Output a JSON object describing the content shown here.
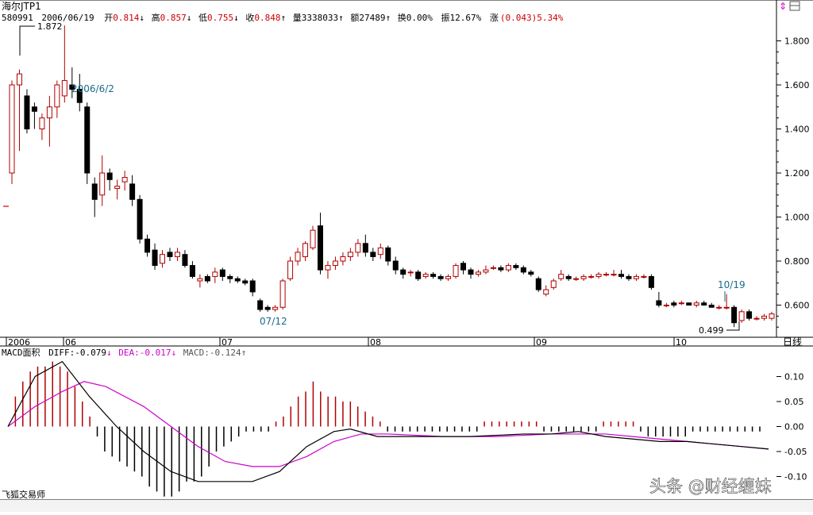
{
  "chart_data": [
    {
      "type": "candlestick",
      "title": "海尔JTP1",
      "info_bar": {
        "code": "580991",
        "date": "2006/06/19",
        "open_label": "开",
        "open": "0.814",
        "open_arrow": "↓",
        "high_label": "高",
        "high": "0.857",
        "high_arrow": "↓",
        "low_label": "低",
        "low": "0.755",
        "low_arrow": "↓",
        "close_label": "收",
        "close": "0.848",
        "close_arrow": "↑",
        "volume_label": "量",
        "volume": "3338033",
        "volume_arrow": "↑",
        "amount_label": "额",
        "amount": "27489",
        "amount_arrow": "↑",
        "turnover_label": "换",
        "turnover": "0.00%",
        "amplitude_label": "振",
        "amplitude": "12.67%",
        "change_label": "涨",
        "change": "(0.043)",
        "change_pct": "5.34%"
      },
      "annotations": [
        "1.872",
        "2006/6/2",
        "07/12",
        "10/19",
        "0.499"
      ],
      "x_tick_labels": [
        "2006",
        "06",
        "07",
        "08",
        "09",
        "10"
      ],
      "y_tick_labels": [
        "1.800",
        "1.600",
        "1.400",
        "1.200",
        "1.000",
        "0.800",
        "0.600"
      ],
      "ylim": [
        0.48,
        1.9
      ],
      "period_label": "日线",
      "candles": [
        [
          1.2,
          1.6,
          1.15,
          1.62
        ],
        [
          1.6,
          1.65,
          1.3,
          1.67
        ],
        [
          1.55,
          1.4,
          1.38,
          1.58
        ],
        [
          1.5,
          1.48,
          1.4,
          1.52
        ],
        [
          1.4,
          1.45,
          1.35,
          1.47
        ],
        [
          1.45,
          1.5,
          1.32,
          1.55
        ],
        [
          1.5,
          1.6,
          1.45,
          1.62
        ],
        [
          1.55,
          1.62,
          1.52,
          1.87
        ],
        [
          1.6,
          1.58,
          1.54,
          1.68
        ],
        [
          1.58,
          1.52,
          1.48,
          1.65
        ],
        [
          1.5,
          1.2,
          1.15,
          1.52
        ],
        [
          1.15,
          1.08,
          1.0,
          1.18
        ],
        [
          1.1,
          1.2,
          1.05,
          1.28
        ],
        [
          1.2,
          1.17,
          1.12,
          1.22
        ],
        [
          1.13,
          1.14,
          1.08,
          1.17
        ],
        [
          1.16,
          1.18,
          1.12,
          1.21
        ],
        [
          1.15,
          1.08,
          1.05,
          1.19
        ],
        [
          1.08,
          0.9,
          0.88,
          1.1
        ],
        [
          0.9,
          0.84,
          0.82,
          0.92
        ],
        [
          0.85,
          0.78,
          0.76,
          0.88
        ],
        [
          0.79,
          0.83,
          0.77,
          0.85
        ],
        [
          0.84,
          0.82,
          0.8,
          0.86
        ],
        [
          0.82,
          0.84,
          0.8,
          0.86
        ],
        [
          0.83,
          0.78,
          0.77,
          0.85
        ],
        [
          0.78,
          0.73,
          0.72,
          0.8
        ],
        [
          0.71,
          0.72,
          0.68,
          0.74
        ],
        [
          0.73,
          0.71,
          0.7,
          0.74
        ],
        [
          0.73,
          0.75,
          0.7,
          0.77
        ],
        [
          0.76,
          0.73,
          0.71,
          0.77
        ],
        [
          0.73,
          0.72,
          0.7,
          0.74
        ],
        [
          0.72,
          0.71,
          0.7,
          0.73
        ],
        [
          0.71,
          0.7,
          0.69,
          0.72
        ],
        [
          0.71,
          0.66,
          0.64,
          0.72
        ],
        [
          0.62,
          0.58,
          0.57,
          0.63
        ],
        [
          0.59,
          0.58,
          0.57,
          0.6
        ],
        [
          0.58,
          0.59,
          0.57,
          0.6
        ],
        [
          0.59,
          0.71,
          0.58,
          0.72
        ],
        [
          0.72,
          0.8,
          0.71,
          0.82
        ],
        [
          0.8,
          0.84,
          0.78,
          0.86
        ],
        [
          0.82,
          0.88,
          0.8,
          0.89
        ],
        [
          0.86,
          0.94,
          0.85,
          0.96
        ],
        [
          0.96,
          0.76,
          0.74,
          1.02
        ],
        [
          0.76,
          0.78,
          0.72,
          0.8
        ],
        [
          0.78,
          0.8,
          0.76,
          0.82
        ],
        [
          0.8,
          0.82,
          0.78,
          0.84
        ],
        [
          0.82,
          0.84,
          0.8,
          0.86
        ],
        [
          0.84,
          0.88,
          0.82,
          0.9
        ],
        [
          0.88,
          0.84,
          0.82,
          0.92
        ],
        [
          0.84,
          0.82,
          0.8,
          0.86
        ],
        [
          0.83,
          0.86,
          0.81,
          0.88
        ],
        [
          0.86,
          0.8,
          0.78,
          0.87
        ],
        [
          0.8,
          0.76,
          0.74,
          0.82
        ],
        [
          0.76,
          0.74,
          0.72,
          0.77
        ],
        [
          0.75,
          0.75,
          0.73,
          0.76
        ],
        [
          0.75,
          0.72,
          0.71,
          0.76
        ],
        [
          0.73,
          0.74,
          0.72,
          0.75
        ],
        [
          0.74,
          0.73,
          0.72,
          0.75
        ],
        [
          0.73,
          0.72,
          0.71,
          0.74
        ],
        [
          0.72,
          0.73,
          0.71,
          0.74
        ],
        [
          0.73,
          0.78,
          0.72,
          0.79
        ],
        [
          0.79,
          0.76,
          0.74,
          0.8
        ],
        [
          0.76,
          0.74,
          0.72,
          0.77
        ],
        [
          0.74,
          0.75,
          0.73,
          0.76
        ],
        [
          0.75,
          0.76,
          0.74,
          0.78
        ],
        [
          0.77,
          0.77,
          0.76,
          0.78
        ],
        [
          0.77,
          0.76,
          0.75,
          0.78
        ],
        [
          0.76,
          0.78,
          0.75,
          0.79
        ],
        [
          0.78,
          0.77,
          0.76,
          0.79
        ],
        [
          0.77,
          0.75,
          0.74,
          0.78
        ],
        [
          0.75,
          0.74,
          0.73,
          0.76
        ],
        [
          0.72,
          0.67,
          0.66,
          0.73
        ],
        [
          0.65,
          0.67,
          0.64,
          0.69
        ],
        [
          0.68,
          0.71,
          0.67,
          0.72
        ],
        [
          0.72,
          0.74,
          0.71,
          0.76
        ],
        [
          0.73,
          0.72,
          0.71,
          0.74
        ],
        [
          0.72,
          0.72,
          0.71,
          0.73
        ],
        [
          0.72,
          0.73,
          0.71,
          0.74
        ],
        [
          0.73,
          0.73,
          0.72,
          0.74
        ],
        [
          0.73,
          0.74,
          0.72,
          0.75
        ],
        [
          0.74,
          0.74,
          0.73,
          0.75
        ],
        [
          0.74,
          0.74,
          0.73,
          0.76
        ],
        [
          0.74,
          0.73,
          0.72,
          0.76
        ],
        [
          0.73,
          0.72,
          0.71,
          0.74
        ],
        [
          0.72,
          0.73,
          0.71,
          0.74
        ],
        [
          0.73,
          0.73,
          0.72,
          0.74
        ],
        [
          0.73,
          0.68,
          0.67,
          0.74
        ],
        [
          0.62,
          0.6,
          0.59,
          0.66
        ],
        [
          0.6,
          0.6,
          0.59,
          0.61
        ],
        [
          0.61,
          0.6,
          0.59,
          0.62
        ],
        [
          0.61,
          0.61,
          0.6,
          0.62
        ],
        [
          0.61,
          0.6,
          0.6,
          0.61
        ],
        [
          0.6,
          0.61,
          0.59,
          0.62
        ],
        [
          0.61,
          0.6,
          0.6,
          0.62
        ],
        [
          0.6,
          0.59,
          0.59,
          0.61
        ],
        [
          0.59,
          0.59,
          0.58,
          0.6
        ],
        [
          0.59,
          0.59,
          0.58,
          0.65
        ],
        [
          0.59,
          0.52,
          0.5,
          0.6
        ],
        [
          0.53,
          0.57,
          0.52,
          0.58
        ],
        [
          0.57,
          0.54,
          0.53,
          0.58
        ],
        [
          0.54,
          0.54,
          0.53,
          0.55
        ],
        [
          0.54,
          0.55,
          0.53,
          0.56
        ],
        [
          0.54,
          0.56,
          0.53,
          0.57
        ]
      ]
    },
    {
      "type": "macd",
      "title": "MACD面积",
      "diff_label": "DIFF:",
      "diff": "-0.079",
      "diff_arrow": "↓",
      "dea_label": "DEA:",
      "dea": "-0.017",
      "dea_arrow": "↓",
      "macd_label": "MACD:",
      "macd": "-0.124",
      "macd_arrow": "↑",
      "y_tick_labels": [
        "0.10",
        "0.05",
        "0.00",
        "-0.05",
        "-0.10"
      ],
      "ylim": [
        -0.13,
        0.13
      ],
      "diff_color": "#000000",
      "dea_color": "#cc00cc",
      "hist": [
        0.0,
        0.06,
        0.09,
        0.11,
        0.12,
        0.12,
        0.13,
        0.12,
        0.11,
        0.08,
        0.05,
        0.02,
        -0.02,
        -0.05,
        -0.06,
        -0.07,
        -0.08,
        -0.09,
        -0.1,
        -0.12,
        -0.13,
        -0.14,
        -0.14,
        -0.13,
        -0.11,
        -0.11,
        -0.1,
        -0.08,
        -0.05,
        -0.04,
        -0.03,
        -0.02,
        -0.01,
        -0.01,
        -0.01,
        -0.01,
        0.01,
        0.02,
        0.04,
        0.06,
        0.07,
        0.09,
        0.07,
        0.06,
        0.06,
        0.05,
        0.05,
        0.04,
        0.03,
        0.02,
        0.01,
        -0.01,
        -0.01,
        -0.01,
        -0.01,
        -0.01,
        -0.01,
        -0.01,
        -0.01,
        -0.01,
        -0.01,
        -0.01,
        -0.01,
        -0.01,
        0.01,
        0.01,
        0.01,
        0.01,
        0.01,
        0.01,
        0.01,
        0.01,
        -0.01,
        -0.01,
        -0.01,
        -0.01,
        -0.01,
        -0.01,
        -0.01,
        -0.01,
        0.01,
        0.01,
        0.01,
        0.01,
        0.01,
        -0.01,
        -0.02,
        -0.02,
        -0.02,
        -0.02,
        -0.02,
        -0.02,
        -0.01,
        -0.01,
        -0.01,
        -0.01,
        -0.01,
        -0.01,
        -0.01,
        -0.01,
        -0.01,
        -0.01
      ],
      "diff_line": [
        [
          0,
          0.0
        ],
        [
          5,
          0.1
        ],
        [
          10,
          0.13
        ],
        [
          15,
          0.06
        ],
        [
          20,
          0.0
        ],
        [
          25,
          -0.05
        ],
        [
          30,
          -0.09
        ],
        [
          35,
          -0.11
        ],
        [
          40,
          -0.11
        ],
        [
          45,
          -0.11
        ],
        [
          50,
          -0.09
        ],
        [
          55,
          -0.04
        ],
        [
          60,
          -0.01
        ],
        [
          63,
          -0.005
        ],
        [
          68,
          -0.02
        ],
        [
          75,
          -0.02
        ],
        [
          85,
          -0.02
        ],
        [
          95,
          -0.015
        ],
        [
          100,
          -0.015
        ],
        [
          105,
          -0.01
        ],
        [
          110,
          -0.02
        ],
        [
          115,
          -0.025
        ],
        [
          120,
          -0.03
        ],
        [
          125,
          -0.03
        ],
        [
          130,
          -0.035
        ],
        [
          135,
          -0.04
        ],
        [
          140,
          -0.045
        ]
      ],
      "dea_line": [
        [
          0,
          0.0
        ],
        [
          5,
          0.04
        ],
        [
          10,
          0.07
        ],
        [
          14,
          0.09
        ],
        [
          18,
          0.08
        ],
        [
          25,
          0.04
        ],
        [
          30,
          0.0
        ],
        [
          35,
          -0.04
        ],
        [
          40,
          -0.07
        ],
        [
          45,
          -0.08
        ],
        [
          50,
          -0.08
        ],
        [
          55,
          -0.06
        ],
        [
          60,
          -0.03
        ],
        [
          65,
          -0.015
        ],
        [
          70,
          -0.015
        ],
        [
          80,
          -0.02
        ],
        [
          90,
          -0.02
        ],
        [
          100,
          -0.015
        ],
        [
          110,
          -0.015
        ],
        [
          115,
          -0.02
        ],
        [
          120,
          -0.025
        ],
        [
          125,
          -0.03
        ],
        [
          130,
          -0.035
        ],
        [
          135,
          -0.04
        ],
        [
          140,
          -0.045
        ]
      ]
    }
  ],
  "footer": {
    "app_name": "飞狐交易师",
    "watermark": "头条 @财经缠妹"
  }
}
